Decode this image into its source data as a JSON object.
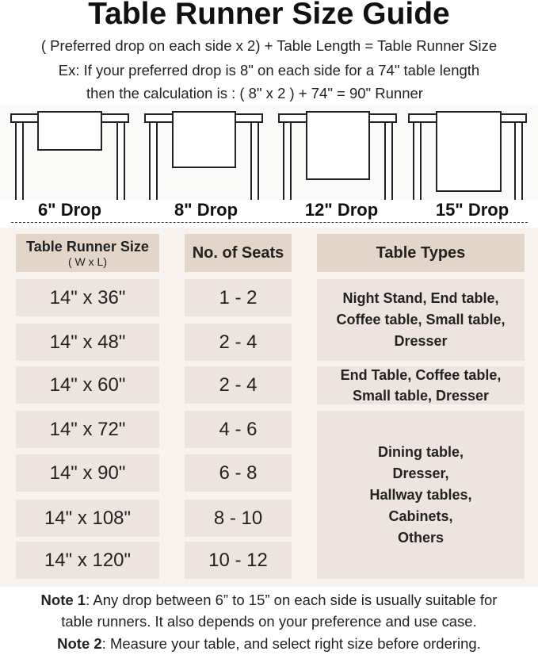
{
  "title": "Table Runner Size Guide",
  "formula": "( Preferred drop on each side x 2) + Table Length = Table Runner Size",
  "example_line1": "Ex: If your preferred drop is 8\" on each side for a 74\" table length",
  "example_line2": "then the calculation is : ( 8\" x 2 ) + 74\" = 90\" Runner",
  "drops": [
    "6\" Drop",
    "8\" Drop",
    "12\" Drop",
    "15\" Drop"
  ],
  "table": {
    "headers": {
      "size": "Table Runner Size",
      "size_sub": "( W x L)",
      "seats": "No. of Seats",
      "types": "Table Types"
    },
    "rows": [
      {
        "size": "14\" x 36\"",
        "seats": "1 - 2"
      },
      {
        "size": "14\" x 48\"",
        "seats": "2 - 4"
      },
      {
        "size": "14\" x 60\"",
        "seats": "2 - 4"
      },
      {
        "size": "14\" x 72\"",
        "seats": "4 - 6"
      },
      {
        "size": "14\" x 90\"",
        "seats": "6 - 8"
      },
      {
        "size": "14\" x 108\"",
        "seats": "8 - 10"
      },
      {
        "size": "14\" x 120\"",
        "seats": "10 - 12"
      }
    ],
    "types": [
      "Night Stand, End table, Coffee table, Small table, Dresser",
      "End Table, Coffee table, Small table, Dresser",
      "Dining table, Dresser, Hallway tables, Cabinets, Others"
    ]
  },
  "notes": {
    "note1_label": "Note 1",
    "note1_line1": ": Any drop between 6” to 15” on each side is usually suitable for",
    "note1_line2": "table runners. It also depends on your preference and use case.",
    "note2_label": "Note 2",
    "note2_text": ": Measure your table, and select right size before ordering."
  },
  "colors": {
    "header_cell": "#e3d6c8",
    "body_cell": "#ede4df",
    "table_bg": "#f8f3ef"
  }
}
